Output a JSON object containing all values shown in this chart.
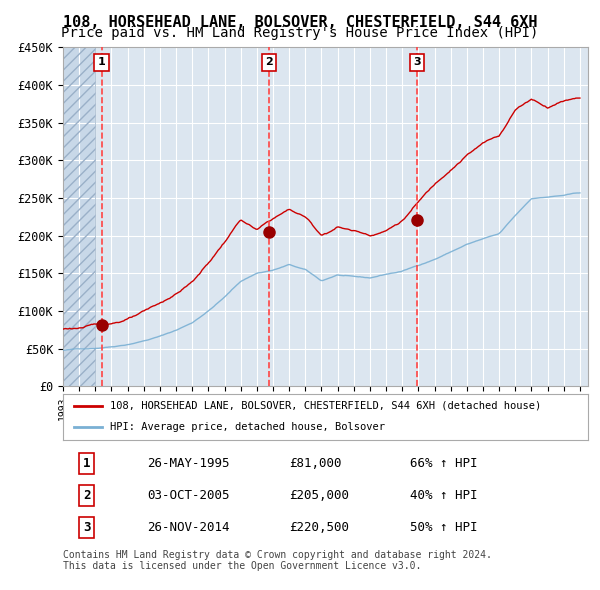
{
  "title": "108, HORSEHEAD LANE, BOLSOVER, CHESTERFIELD, S44 6XH",
  "subtitle": "Price paid vs. HM Land Registry's House Price Index (HPI)",
  "title_fontsize": 11,
  "subtitle_fontsize": 10,
  "bg_color": "#dce6f0",
  "red_line_color": "#cc0000",
  "blue_line_color": "#7ab0d4",
  "dashed_line_color": "#ff4444",
  "marker_color": "#990000",
  "ylim": [
    0,
    450000
  ],
  "yticks": [
    0,
    50000,
    100000,
    150000,
    200000,
    250000,
    300000,
    350000,
    400000,
    450000
  ],
  "ytick_labels": [
    "£0",
    "£50K",
    "£100K",
    "£150K",
    "£200K",
    "£250K",
    "£300K",
    "£350K",
    "£400K",
    "£450K"
  ],
  "sale_dates_num": [
    1995.39,
    2005.75,
    2014.9
  ],
  "sale_prices": [
    81000,
    205000,
    220500
  ],
  "sale_labels": [
    "1",
    "2",
    "3"
  ],
  "legend_entries": [
    "108, HORSEHEAD LANE, BOLSOVER, CHESTERFIELD, S44 6XH (detached house)",
    "HPI: Average price, detached house, Bolsover"
  ],
  "table_rows": [
    [
      "1",
      "26-MAY-1995",
      "£81,000",
      "66% ↑ HPI"
    ],
    [
      "2",
      "03-OCT-2005",
      "£205,000",
      "40% ↑ HPI"
    ],
    [
      "3",
      "26-NOV-2014",
      "£220,500",
      "50% ↑ HPI"
    ]
  ],
  "footer_text": "Contains HM Land Registry data © Crown copyright and database right 2024.\nThis data is licensed under the Open Government Licence v3.0.",
  "xstart": 1993.0,
  "xend": 2025.5,
  "hpi_years": [
    1993,
    1994,
    1995,
    1996,
    1997,
    1998,
    1999,
    2000,
    2001,
    2002,
    2003,
    2004,
    2005,
    2006,
    2007,
    2008,
    2009,
    2010,
    2011,
    2012,
    2013,
    2014,
    2015,
    2016,
    2017,
    2018,
    2019,
    2020,
    2021,
    2022,
    2023,
    2024,
    2025
  ],
  "hpi_vals": [
    48000,
    49500,
    51000,
    53500,
    57000,
    62000,
    68000,
    76000,
    86000,
    102000,
    120000,
    141000,
    152000,
    156000,
    163000,
    156000,
    141000,
    149000,
    146000,
    144000,
    149000,
    153000,
    161000,
    169000,
    179000,
    189000,
    196000,
    202000,
    226000,
    249000,
    251000,
    253000,
    256000
  ],
  "prop_years": [
    1993,
    1994,
    1995,
    1996,
    1997,
    1998,
    1999,
    2000,
    2001,
    2002,
    2003,
    2004,
    2005,
    2006,
    2007,
    2008,
    2009,
    2010,
    2011,
    2012,
    2013,
    2014,
    2015,
    2016,
    2017,
    2018,
    2019,
    2020,
    2021,
    2022,
    2023,
    2024,
    2025
  ],
  "prop_vals": [
    76000,
    78000,
    81000,
    84000,
    90000,
    98000,
    108000,
    121000,
    137000,
    162000,
    190000,
    220000,
    205000,
    220000,
    232000,
    222000,
    198000,
    210000,
    205000,
    200000,
    207000,
    220500,
    245000,
    268000,
    290000,
    310000,
    325000,
    335000,
    370000,
    385000,
    375000,
    385000,
    390000
  ]
}
